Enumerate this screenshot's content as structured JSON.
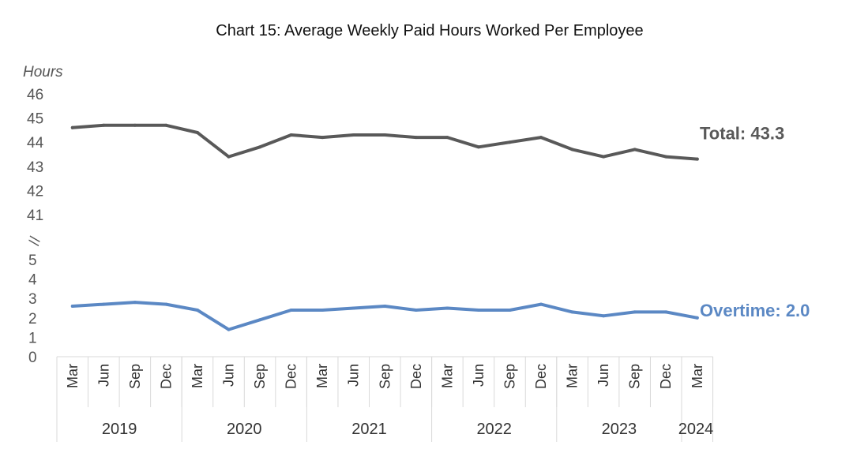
{
  "chart_data": {
    "type": "line",
    "title": "Chart 15: Average Weekly Paid Hours Worked Per Employee",
    "ylabel": "Hours",
    "y_break_symbol": "//",
    "y_ticks_upper": [
      "41",
      "42",
      "43",
      "44",
      "45",
      "46"
    ],
    "y_ticks_lower": [
      "0",
      "1",
      "2",
      "3",
      "4",
      "5"
    ],
    "ylim_upper": [
      41,
      46
    ],
    "ylim_lower": [
      0,
      5
    ],
    "grid": false,
    "x": [
      "Mar",
      "Jun",
      "Sep",
      "Dec",
      "Mar",
      "Jun",
      "Sep",
      "Dec",
      "Mar",
      "Jun",
      "Sep",
      "Dec",
      "Mar",
      "Jun",
      "Sep",
      "Dec",
      "Mar",
      "Jun",
      "Sep",
      "Dec",
      "Mar"
    ],
    "years": [
      {
        "label": "2019",
        "count": 4
      },
      {
        "label": "2020",
        "count": 4
      },
      {
        "label": "2021",
        "count": 4
      },
      {
        "label": "2022",
        "count": 4
      },
      {
        "label": "2023",
        "count": 4
      },
      {
        "label": "2024",
        "count": 1
      }
    ],
    "series": [
      {
        "key": "total",
        "color": "#595959",
        "end_label": "Total: 43.3",
        "values": [
          44.6,
          44.7,
          44.7,
          44.7,
          44.4,
          43.4,
          43.8,
          44.3,
          44.2,
          44.3,
          44.3,
          44.2,
          44.2,
          43.8,
          44.0,
          44.2,
          43.7,
          43.4,
          43.7,
          43.4,
          43.3
        ]
      },
      {
        "key": "overtime",
        "color": "#5B88C4",
        "end_label": "Overtime: 2.0",
        "values": [
          2.6,
          2.7,
          2.8,
          2.7,
          2.4,
          1.4,
          1.9,
          2.4,
          2.4,
          2.5,
          2.6,
          2.4,
          2.5,
          2.4,
          2.4,
          2.7,
          2.3,
          2.1,
          2.3,
          2.3,
          2.0
        ]
      }
    ]
  }
}
